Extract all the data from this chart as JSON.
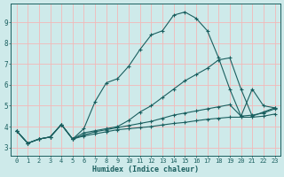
{
  "xlabel": "Humidex (Indice chaleur)",
  "bg_color": "#ceeaea",
  "grid_color": "#f2b8b8",
  "line_color": "#1a5f5f",
  "xlim": [
    -0.5,
    23.5
  ],
  "ylim": [
    2.6,
    9.9
  ],
  "xticks": [
    0,
    1,
    2,
    3,
    4,
    5,
    6,
    7,
    8,
    9,
    10,
    11,
    12,
    13,
    14,
    15,
    16,
    17,
    18,
    19,
    20,
    21,
    22,
    23
  ],
  "yticks": [
    3,
    4,
    5,
    6,
    7,
    8,
    9
  ],
  "series": [
    {
      "x": [
        0,
        1,
        2,
        3,
        4,
        5,
        6,
        7,
        8,
        9,
        10,
        11,
        12,
        13,
        14,
        15,
        16,
        17,
        18,
        19,
        20,
        21,
        22,
        23
      ],
      "y": [
        3.8,
        3.2,
        3.4,
        3.5,
        4.1,
        3.4,
        3.9,
        5.2,
        6.1,
        6.3,
        6.9,
        7.7,
        8.4,
        8.6,
        9.35,
        9.5,
        9.2,
        8.6,
        7.3,
        5.8,
        4.5,
        5.8,
        5.0,
        4.9
      ]
    },
    {
      "x": [
        0,
        1,
        2,
        3,
        4,
        5,
        6,
        7,
        8,
        9,
        10,
        11,
        12,
        13,
        14,
        15,
        16,
        17,
        18,
        19,
        20,
        21,
        22,
        23
      ],
      "y": [
        3.8,
        3.2,
        3.4,
        3.5,
        4.1,
        3.4,
        3.7,
        3.8,
        3.9,
        4.0,
        4.3,
        4.7,
        5.0,
        5.4,
        5.8,
        6.2,
        6.5,
        6.8,
        7.2,
        7.3,
        5.8,
        4.5,
        4.7,
        4.9
      ]
    },
    {
      "x": [
        0,
        1,
        2,
        3,
        4,
        5,
        6,
        7,
        8,
        9,
        10,
        11,
        12,
        13,
        14,
        15,
        16,
        17,
        18,
        19,
        20,
        21,
        22,
        23
      ],
      "y": [
        3.8,
        3.2,
        3.4,
        3.5,
        4.1,
        3.4,
        3.6,
        3.75,
        3.85,
        3.95,
        4.05,
        4.15,
        4.25,
        4.4,
        4.55,
        4.65,
        4.75,
        4.85,
        4.95,
        5.05,
        4.5,
        4.55,
        4.65,
        4.85
      ]
    },
    {
      "x": [
        0,
        1,
        2,
        3,
        4,
        5,
        6,
        7,
        8,
        9,
        10,
        11,
        12,
        13,
        14,
        15,
        16,
        17,
        18,
        19,
        20,
        21,
        22,
        23
      ],
      "y": [
        3.8,
        3.2,
        3.4,
        3.5,
        4.1,
        3.4,
        3.55,
        3.65,
        3.75,
        3.85,
        3.9,
        3.95,
        4.0,
        4.08,
        4.15,
        4.2,
        4.28,
        4.35,
        4.4,
        4.45,
        4.45,
        4.45,
        4.5,
        4.6
      ]
    }
  ]
}
